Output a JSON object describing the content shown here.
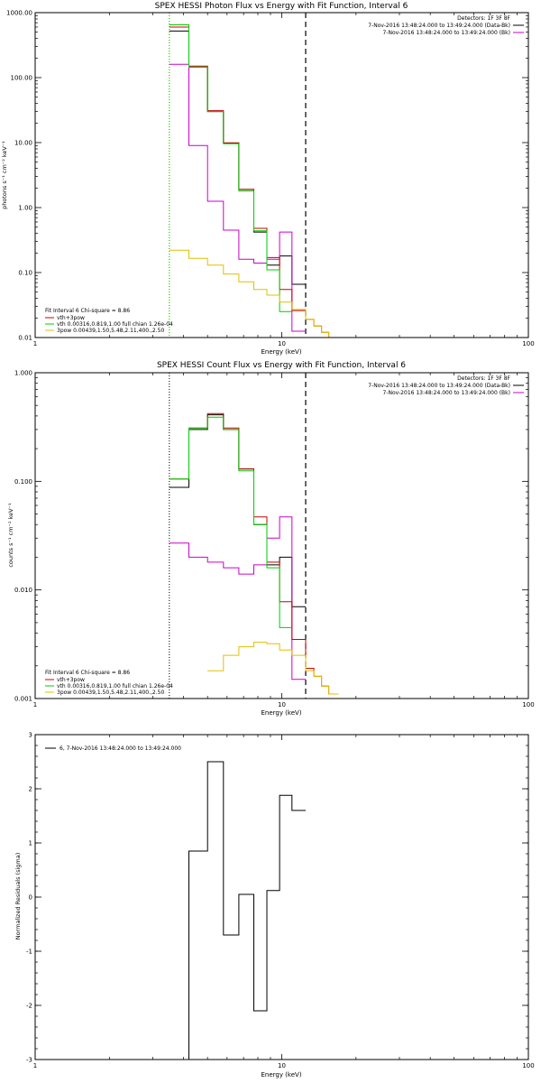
{
  "chart_data": [
    {
      "id": "p1",
      "type": "line",
      "title": "SPEX HESSI Photon Flux vs Energy with Fit Function, Interval 6",
      "xlabel": "Energy (keV)",
      "ylabel": "photons s⁻¹ cm⁻² keV⁻¹",
      "xlog": true,
      "ylog": true,
      "xlim": [
        1,
        100
      ],
      "ylim": [
        0.01,
        1000
      ],
      "xticks": [
        {
          "v": 1,
          "t": "1"
        },
        {
          "v": 10,
          "t": "10"
        },
        {
          "v": 100,
          "t": "100"
        }
      ],
      "yticks": [
        {
          "v": 0.01,
          "t": "0.01"
        },
        {
          "v": 0.1,
          "t": "0.10"
        },
        {
          "v": 1,
          "t": "1.00"
        },
        {
          "v": 10,
          "t": "10.00"
        },
        {
          "v": 100,
          "t": "100.00"
        },
        {
          "v": 1000,
          "t": "1000.00"
        }
      ],
      "vlines": [
        {
          "x": 3.5,
          "style": "dotted",
          "color": "#e0a800"
        },
        {
          "x": 3.5,
          "style": "dotted",
          "color": "#00cc00"
        },
        {
          "x": 12.5,
          "style": "dashed",
          "color": "#000000"
        }
      ],
      "top_right_legend": {
        "header": "Detectors: 1F 3F 8F",
        "items": [
          {
            "text": "7-Nov-2016 13:48:24.000 to 13:49:24.000 (Data-Bk)",
            "color": "#000000"
          },
          {
            "text": "7-Nov-2016 13:48:24.000 to 13:49:24.000 (Bk)",
            "color": "#cc00cc"
          }
        ]
      },
      "bottom_left_legend": {
        "header": "Fit Interval  6   Chi-square = 8.86",
        "items": [
          {
            "text": "vth+3pow",
            "color": "#cc0000"
          },
          {
            "text": "vth 0.00316,0.819,1.00  full chian 1.26e-04",
            "color": "#00cc00"
          },
          {
            "text": "3pow 0.00439,1.50,5.48,2.11,400.,2.50",
            "color": "#e0c000"
          }
        ]
      },
      "series": [
        {
          "name": "Data-Bk",
          "color": "#000000",
          "edges": [
            3.5,
            4.2,
            5,
            5.8,
            6.7,
            7.7,
            8.7,
            9.8,
            11,
            12.5
          ],
          "values": [
            520,
            145,
            30,
            9.8,
            1.9,
            0.42,
            0.13,
            0.18,
            0.066
          ]
        },
        {
          "name": "Bk",
          "color": "#cc00cc",
          "edges": [
            3.5,
            4.2,
            5,
            5.8,
            6.7,
            7.7,
            8.7,
            9.8,
            11,
            12.5
          ],
          "values": [
            160,
            9,
            1.25,
            0.45,
            0.16,
            0.14,
            0.16,
            0.42,
            0.0125
          ]
        },
        {
          "name": "vth+3pow",
          "color": "#cc0000",
          "edges": [
            3.5,
            4.2,
            5,
            5.8,
            6.7,
            7.7,
            8.7,
            9.8,
            11,
            12.5,
            13.5,
            14.5,
            15.5,
            17
          ],
          "values": [
            600,
            150,
            31,
            9.9,
            1.9,
            0.48,
            0.17,
            0.055,
            0.026,
            0.019,
            0.015,
            0.012,
            0.01
          ]
        },
        {
          "name": "vth",
          "color": "#00cc00",
          "edges": [
            3.5,
            4.2,
            5,
            5.8,
            6.7,
            7.7,
            8.7,
            9.8,
            11
          ],
          "values": [
            650,
            145,
            30,
            9.6,
            1.8,
            0.44,
            0.11,
            0.025
          ]
        },
        {
          "name": "3pow",
          "color": "#e0c000",
          "edges": [
            3.5,
            4.2,
            5,
            5.8,
            6.7,
            7.7,
            8.7,
            9.8,
            11,
            12.5,
            13.5,
            14.5,
            15.5,
            17
          ],
          "values": [
            0.22,
            0.165,
            0.13,
            0.095,
            0.072,
            0.055,
            0.045,
            0.035,
            0.027,
            0.019,
            0.015,
            0.012,
            0.01
          ]
        }
      ]
    },
    {
      "id": "p2",
      "type": "line",
      "title": "SPEX HESSI Count Flux vs Energy with Fit Function, Interval 6",
      "xlabel": "Energy (keV)",
      "ylabel": "counts s⁻¹ cm⁻² keV⁻¹",
      "xlog": true,
      "ylog": true,
      "xlim": [
        1,
        100
      ],
      "ylim": [
        0.001,
        1
      ],
      "xticks": [
        {
          "v": 1,
          "t": "1"
        },
        {
          "v": 10,
          "t": "10"
        },
        {
          "v": 100,
          "t": "100"
        }
      ],
      "yticks": [
        {
          "v": 0.001,
          "t": "0.001"
        },
        {
          "v": 0.01,
          "t": "0.010"
        },
        {
          "v": 0.1,
          "t": "0.100"
        },
        {
          "v": 1,
          "t": "1.000"
        }
      ],
      "vlines": [
        {
          "x": 3.5,
          "style": "dotted",
          "color": "#000000"
        },
        {
          "x": 12.5,
          "style": "dashed",
          "color": "#000000"
        }
      ],
      "top_right_legend": {
        "header": "Detectors: 1F 3F 8F",
        "items": [
          {
            "text": "7-Nov-2016 13:48:24.000 to 13:49:24.000 (Data-Bk)",
            "color": "#000000"
          },
          {
            "text": "7-Nov-2016 13:48:24.000 to 13:49:24.000 (Bk)",
            "color": "#cc00cc"
          }
        ]
      },
      "bottom_left_legend": {
        "header": "Fit Interval  6   Chi-square = 8.86",
        "items": [
          {
            "text": "vth+3pow",
            "color": "#cc0000"
          },
          {
            "text": "vth 0.00316,0.819,1.00  full chian 1.26e-04",
            "color": "#00cc00"
          },
          {
            "text": "3pow 0.00439,1.50,5.48,2.11,400.,2.50",
            "color": "#e0c000"
          }
        ]
      },
      "series": [
        {
          "name": "Data-Bk",
          "color": "#000000",
          "edges": [
            3.5,
            4.2,
            5,
            5.8,
            6.7,
            7.7,
            8.7,
            9.8,
            11,
            12.5
          ],
          "values": [
            0.088,
            0.3,
            0.41,
            0.3,
            0.13,
            0.04,
            0.017,
            0.02,
            0.007
          ]
        },
        {
          "name": "Bk",
          "color": "#cc00cc",
          "edges": [
            3.5,
            4.2,
            5,
            5.8,
            6.7,
            7.7,
            8.7,
            9.8,
            11,
            12.5
          ],
          "values": [
            0.027,
            0.02,
            0.018,
            0.016,
            0.014,
            0.017,
            0.03,
            0.047,
            0.0015
          ]
        },
        {
          "name": "vth+3pow",
          "color": "#cc0000",
          "edges": [
            3.5,
            4.2,
            5,
            5.8,
            6.7,
            7.7,
            8.7,
            9.8,
            11,
            12.5,
            13.5,
            14.5,
            15.5,
            17
          ],
          "values": [
            0.105,
            0.31,
            0.42,
            0.31,
            0.13,
            0.047,
            0.018,
            0.0078,
            0.0035,
            0.0019,
            0.0016,
            0.0013,
            0.0011
          ]
        },
        {
          "name": "vth",
          "color": "#00cc00",
          "edges": [
            3.5,
            4.2,
            5,
            5.8,
            6.7,
            7.7,
            8.7,
            9.8,
            11
          ],
          "values": [
            0.105,
            0.31,
            0.39,
            0.3,
            0.125,
            0.04,
            0.016,
            0.0045
          ]
        },
        {
          "name": "3pow",
          "color": "#e0c000",
          "edges": [
            5,
            5.8,
            6.7,
            7.7,
            8.7,
            9.8,
            11,
            12.5,
            13.5,
            14.5,
            15.5,
            17
          ],
          "values": [
            0.0018,
            0.0025,
            0.003,
            0.0033,
            0.0032,
            0.0028,
            0.0025,
            0.0018,
            0.0016,
            0.0013,
            0.0011
          ]
        }
      ]
    },
    {
      "id": "p3",
      "type": "line",
      "title": "",
      "xlabel": "Energy (keV)",
      "ylabel": "Normalized Residuals (sigma)",
      "xlog": true,
      "ylog": false,
      "xlim": [
        1,
        100
      ],
      "ylim": [
        -3,
        3
      ],
      "xticks": [
        {
          "v": 1,
          "t": "1"
        },
        {
          "v": 10,
          "t": "10"
        },
        {
          "v": 100,
          "t": "100"
        }
      ],
      "yticks": [
        {
          "v": -3,
          "t": "-3"
        },
        {
          "v": -2,
          "t": "-2"
        },
        {
          "v": -1,
          "t": "-1"
        },
        {
          "v": 0,
          "t": "0"
        },
        {
          "v": 1,
          "t": "1"
        },
        {
          "v": 2,
          "t": "2"
        },
        {
          "v": 3,
          "t": "3"
        }
      ],
      "vlines": [],
      "top_left_legend": {
        "items": [
          {
            "text": "6, 7-Nov-2016 13:48:24.000 to 13:49:24.000",
            "color": "#000000"
          }
        ]
      },
      "series": [
        {
          "name": "6, 7-Nov-2016 13:48:24.000 to 13:49:24.000",
          "color": "#000000",
          "edges": [
            3.5,
            4.2,
            5,
            5.8,
            6.7,
            7.7,
            8.7,
            9.8,
            11,
            12.5
          ],
          "values": [
            -3,
            0.85,
            2.5,
            -0.7,
            0.05,
            -2.1,
            0.12,
            1.88,
            1.6
          ]
        }
      ]
    }
  ]
}
